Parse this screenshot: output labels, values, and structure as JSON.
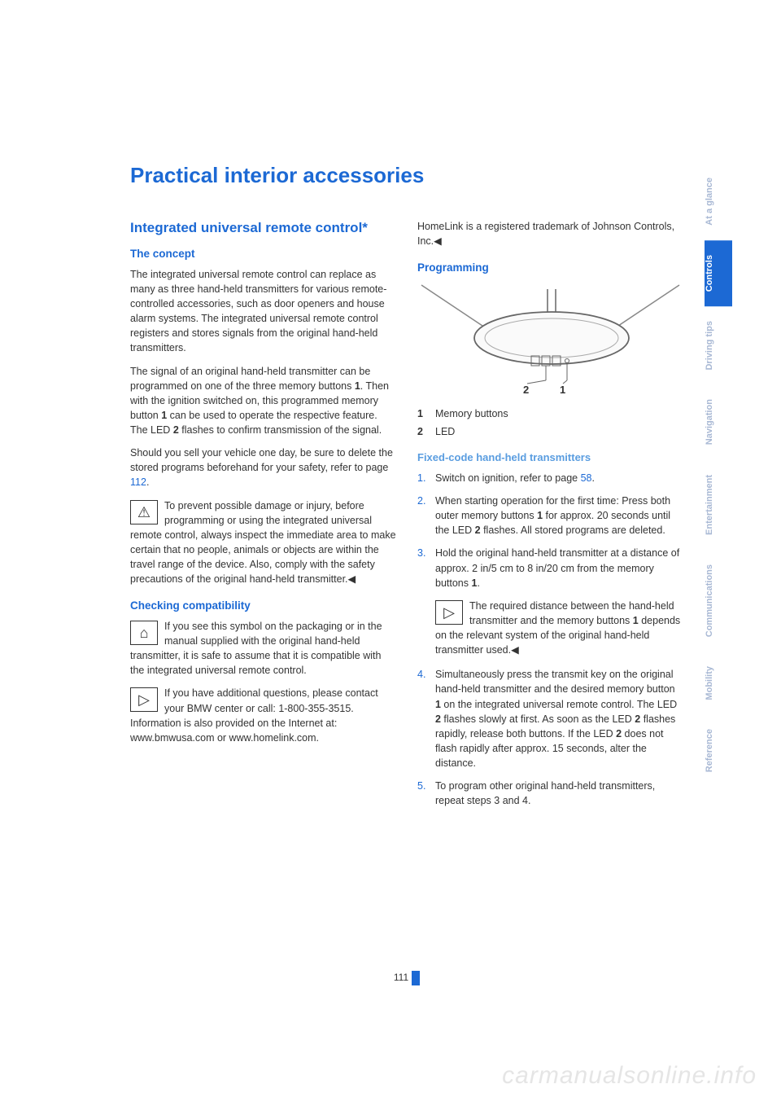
{
  "page": {
    "title": "Practical interior accessories",
    "number": "111"
  },
  "left": {
    "section_heading": "Integrated universal remote control*",
    "concept": {
      "heading": "The concept",
      "p1": "The integrated universal remote control can replace as many as three hand-held transmitters for various remote-controlled accessories, such as door openers and house alarm systems. The integrated universal remote control registers and stores signals from the original hand-held transmitters.",
      "p2a": "The signal of an original hand-held transmitter can be programmed on one of the three memory buttons ",
      "p2b": ". Then with the ignition switched on, this programmed memory button ",
      "p2c": " can be used to operate the respective feature. The LED ",
      "p2d": " flashes to confirm transmission of the signal.",
      "p3a": "Should you sell your vehicle one day, be sure to delete the stored programs beforehand for your safety, refer to page ",
      "p3link": "112",
      "p3b": ".",
      "warning": "To prevent possible damage or injury, before programming or using the integrated universal remote control, always inspect the immediate area to make certain that no people, animals or objects are within the travel range of the device. Also, comply with the safety precautions of the original hand-held transmitter."
    },
    "compat": {
      "heading": "Checking compatibility",
      "p1": "If you see this symbol on the packaging or in the manual supplied with the original hand-held transmitter, it is safe to assume that it is compatible with the integrated universal remote control.",
      "p2": "If you have additional questions, please contact your BMW center or call: 1-800-355-3515.",
      "p3": "Information is also provided on the Internet at: www.bmwusa.com or www.homelink.com."
    }
  },
  "right": {
    "trademark": "HomeLink is a registered trademark of Johnson Controls, Inc.",
    "programming_heading": "Programming",
    "labels": {
      "one": "1",
      "two": "2",
      "one_text": "Memory buttons",
      "two_text": "LED"
    },
    "fixed": {
      "heading": "Fixed-code hand-held transmitters",
      "step1a": "Switch on ignition, refer to page ",
      "step1link": "58",
      "step1b": ".",
      "step2a": "When starting operation for the first time: Press both outer memory buttons ",
      "step2b": " for approx. 20 seconds until the LED ",
      "step2c": " flashes. All stored programs are deleted.",
      "step3a": "Hold the original hand-held transmitter at a distance of approx. 2 in/5 cm to 8 in/20 cm from the memory buttons ",
      "step3b": ".",
      "note_a": "The required distance between the hand-held transmitter and the memory buttons ",
      "note_b": " depends on the relevant system of the original hand-held transmitter used.",
      "step4a": "Simultaneously press the transmit key on the original hand-held transmitter and the desired memory button ",
      "step4b": " on the integrated universal remote control. The LED ",
      "step4c": " flashes slowly at first. As soon as the LED ",
      "step4d": " flashes rapidly, release both buttons. If the LED ",
      "step4e": " does not flash rapidly after approx. 15 seconds, alter the distance.",
      "step5": "To program other original hand-held transmitters, repeat steps 3 and 4."
    }
  },
  "tabs": [
    {
      "label": "At a glance",
      "active": false
    },
    {
      "label": "Controls",
      "active": true
    },
    {
      "label": "Driving tips",
      "active": false
    },
    {
      "label": "Navigation",
      "active": false
    },
    {
      "label": "Entertainment",
      "active": false
    },
    {
      "label": "Communications",
      "active": false
    },
    {
      "label": "Mobility",
      "active": false
    },
    {
      "label": "Reference",
      "active": false
    }
  ],
  "numerals": {
    "one": "1",
    "two": "2"
  },
  "list_nums": {
    "n1": "1.",
    "n2": "2.",
    "n3": "3.",
    "n4": "4.",
    "n5": "5."
  },
  "watermark": "carmanualsonline.info",
  "diagram": {
    "bg": "#ffffff",
    "stroke": "#555555",
    "label_color": "#333333"
  }
}
